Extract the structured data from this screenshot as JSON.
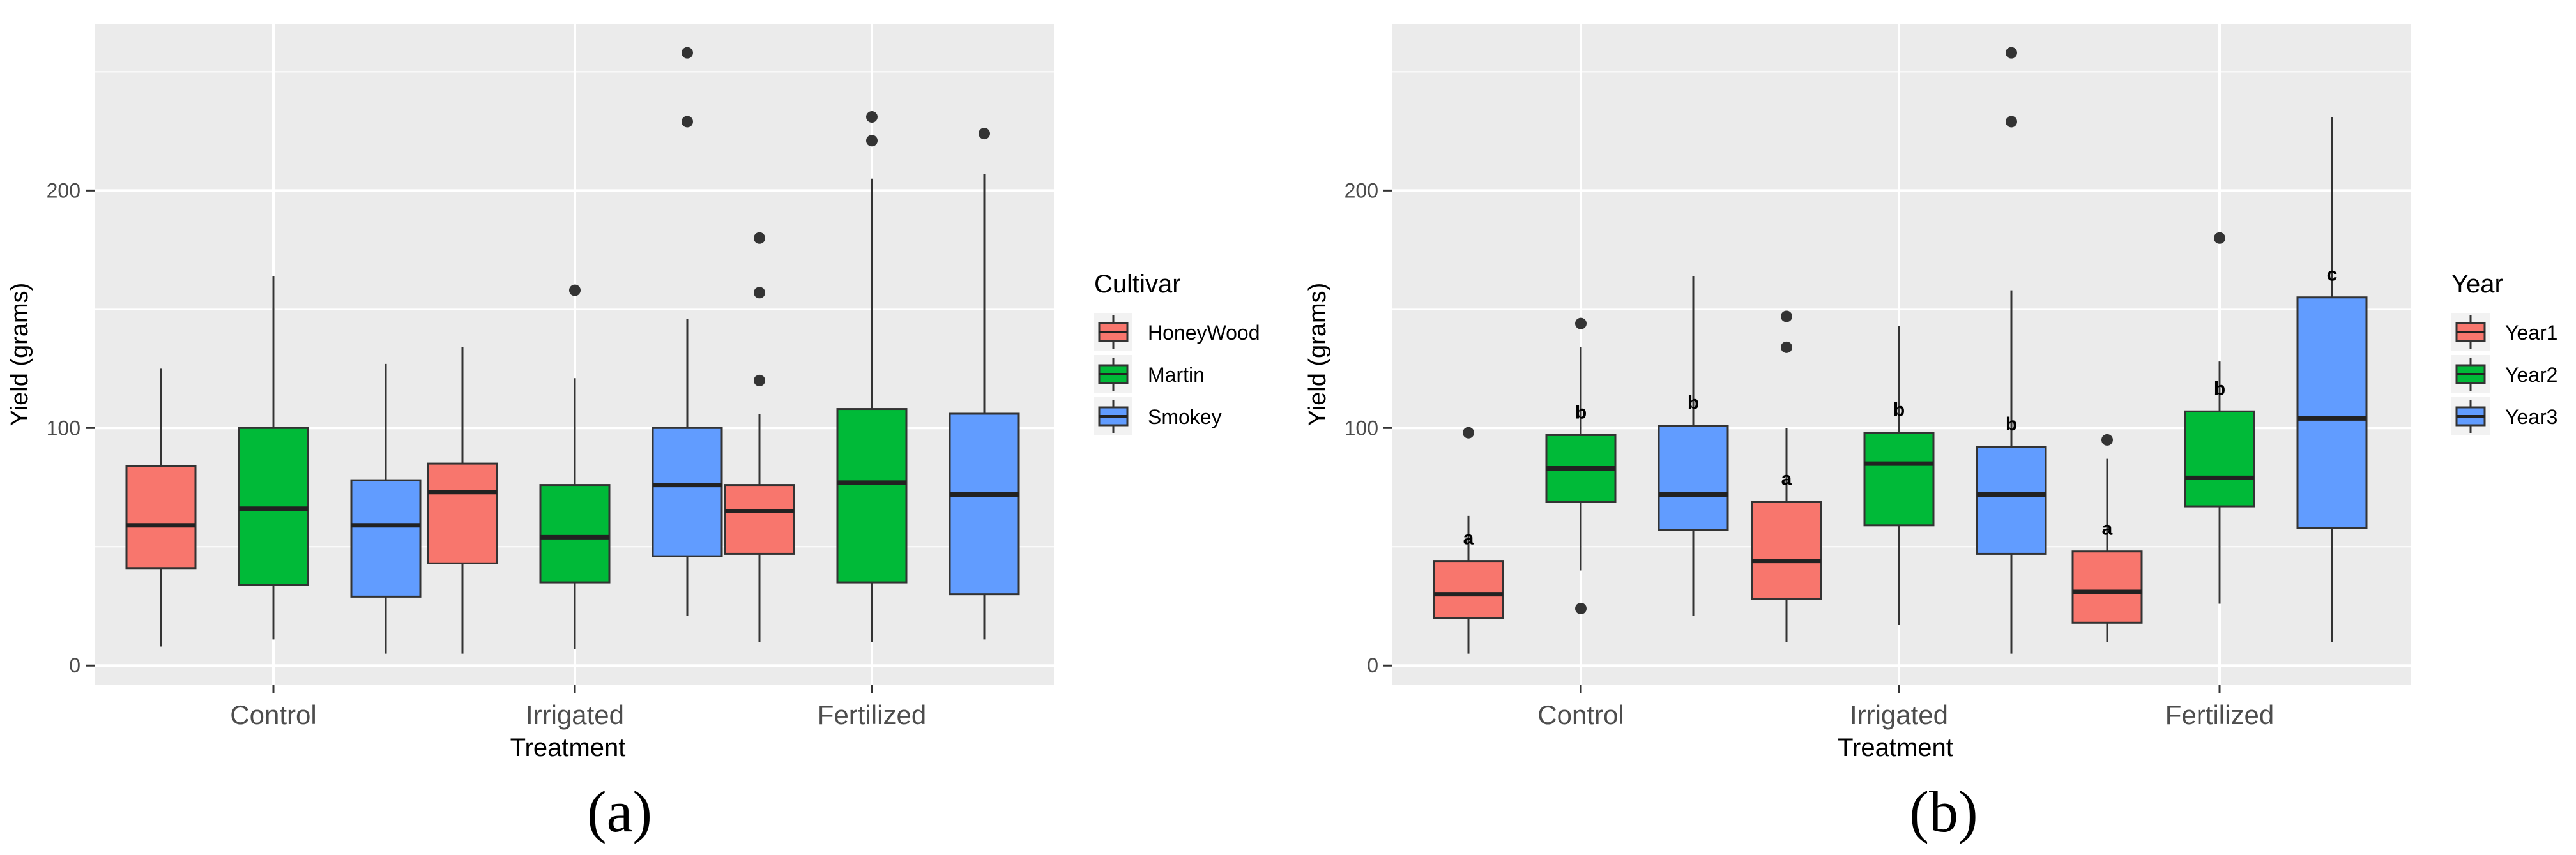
{
  "chart_data": [
    {
      "type": "boxplot",
      "panel_label": "(a)",
      "xlabel": "Treatment",
      "ylabel": "Yield (grams)",
      "ylim": [
        -8,
        270
      ],
      "yticks": [
        0,
        100,
        200
      ],
      "categories": [
        "Control",
        "Irrigated",
        "Fertilized"
      ],
      "legend": {
        "title": "Cultivar",
        "placement": "right"
      },
      "series": [
        {
          "name": "HoneyWood",
          "color": "#F8766D",
          "boxes": [
            {
              "category": "Control",
              "min": 8,
              "q1": 41,
              "median": 59,
              "q3": 84,
              "max": 125,
              "outliers": [],
              "letter": ""
            },
            {
              "category": "Irrigated",
              "min": 5,
              "q1": 43,
              "median": 73,
              "q3": 85,
              "max": 134,
              "outliers": [],
              "letter": ""
            },
            {
              "category": "Fertilized",
              "min": 10,
              "q1": 47,
              "median": 65,
              "q3": 76,
              "max": 106,
              "outliers": [
                120,
                157,
                180
              ],
              "letter": ""
            }
          ]
        },
        {
          "name": "Martin",
          "color": "#00BA38",
          "boxes": [
            {
              "category": "Control",
              "min": 11,
              "q1": 34,
              "median": 66,
              "q3": 100,
              "max": 164,
              "outliers": [],
              "letter": ""
            },
            {
              "category": "Irrigated",
              "min": 7,
              "q1": 35,
              "median": 54,
              "q3": 76,
              "max": 121,
              "outliers": [
                158
              ],
              "letter": ""
            },
            {
              "category": "Fertilized",
              "min": 10,
              "q1": 35,
              "median": 77,
              "q3": 108,
              "max": 205,
              "outliers": [
                221,
                231
              ],
              "letter": ""
            }
          ]
        },
        {
          "name": "Smokey",
          "color": "#619CFF",
          "boxes": [
            {
              "category": "Control",
              "min": 5,
              "q1": 29,
              "median": 59,
              "q3": 78,
              "max": 127,
              "outliers": [],
              "letter": ""
            },
            {
              "category": "Irrigated",
              "min": 21,
              "q1": 46,
              "median": 76,
              "q3": 100,
              "max": 146,
              "outliers": [
                229,
                258
              ],
              "letter": ""
            },
            {
              "category": "Fertilized",
              "min": 11,
              "q1": 30,
              "median": 72,
              "q3": 106,
              "max": 207,
              "outliers": [
                224
              ],
              "letter": ""
            }
          ]
        }
      ]
    },
    {
      "type": "boxplot",
      "panel_label": "(b)",
      "xlabel": "Treatment",
      "ylabel": "Yield (grams)",
      "ylim": [
        -8,
        270
      ],
      "yticks": [
        0,
        100,
        200
      ],
      "categories": [
        "Control",
        "Irrigated",
        "Fertilized"
      ],
      "legend": {
        "title": "Year",
        "placement": "right"
      },
      "series": [
        {
          "name": "Year1",
          "color": "#F8766D",
          "boxes": [
            {
              "category": "Control",
              "min": 5,
              "q1": 20,
              "median": 30,
              "q3": 44,
              "max": 63,
              "outliers": [
                98
              ],
              "letter": "a"
            },
            {
              "category": "Irrigated",
              "min": 10,
              "q1": 28,
              "median": 44,
              "q3": 69,
              "max": 100,
              "outliers": [
                134,
                147
              ],
              "letter": "a"
            },
            {
              "category": "Fertilized",
              "min": 10,
              "q1": 18,
              "median": 31,
              "q3": 48,
              "max": 87,
              "outliers": [
                95
              ],
              "letter": "a"
            }
          ]
        },
        {
          "name": "Year2",
          "color": "#00BA38",
          "boxes": [
            {
              "category": "Control",
              "min": 40,
              "q1": 69,
              "median": 83,
              "q3": 97,
              "max": 134,
              "outliers": [
                24,
                144
              ],
              "letter": "b"
            },
            {
              "category": "Irrigated",
              "min": 17,
              "q1": 59,
              "median": 85,
              "q3": 98,
              "max": 143,
              "outliers": [],
              "letter": "b"
            },
            {
              "category": "Fertilized",
              "min": 26,
              "q1": 67,
              "median": 79,
              "q3": 107,
              "max": 128,
              "outliers": [
                180
              ],
              "letter": "b"
            }
          ]
        },
        {
          "name": "Year3",
          "color": "#619CFF",
          "boxes": [
            {
              "category": "Control",
              "min": 21,
              "q1": 57,
              "median": 72,
              "q3": 101,
              "max": 164,
              "outliers": [],
              "letter": "b"
            },
            {
              "category": "Irrigated",
              "min": 5,
              "q1": 47,
              "median": 72,
              "q3": 92,
              "max": 158,
              "outliers": [
                229,
                258
              ],
              "letter": "b"
            },
            {
              "category": "Fertilized",
              "min": 10,
              "q1": 58,
              "median": 104,
              "q3": 155,
              "max": 231,
              "outliers": [],
              "letter": "c"
            }
          ]
        }
      ]
    }
  ]
}
